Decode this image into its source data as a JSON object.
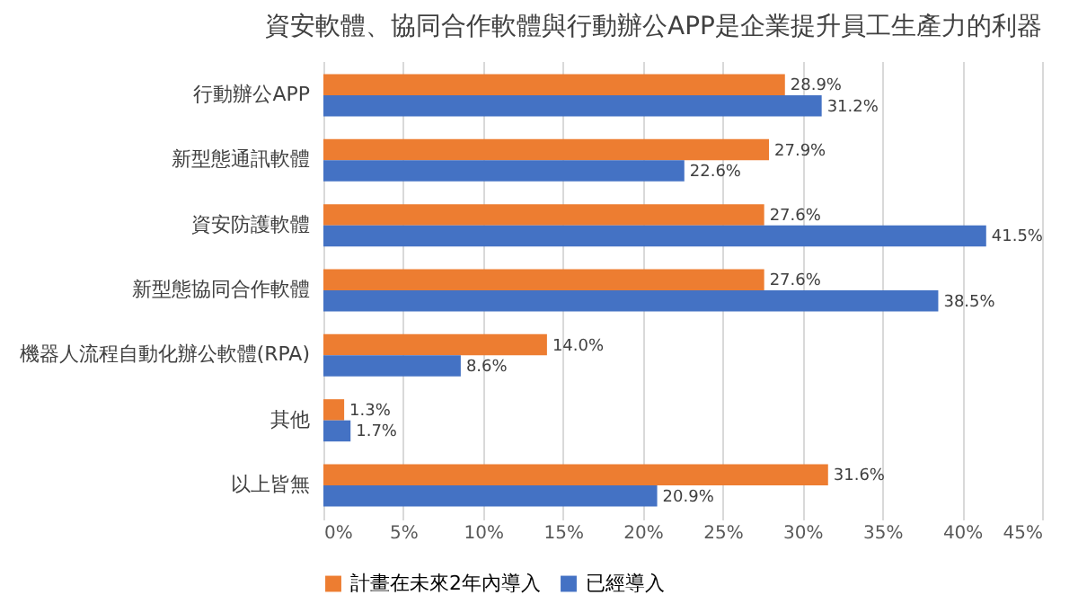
{
  "chart_data": {
    "type": "bar",
    "orientation": "horizontal",
    "title": "資安軟體、協同合作軟體與行動辦公APP是企業提升員工生產力的利器",
    "categories": [
      "行動辦公APP",
      "新型態通訊軟體",
      "資安防護軟體",
      "新型態協同合作軟體",
      "機器人流程自動化辦公軟體(RPA)",
      "其他",
      "以上皆無"
    ],
    "series": [
      {
        "name": "計畫在未來2年內導入",
        "color": "#ed7d31",
        "values": [
          28.9,
          27.9,
          27.6,
          27.6,
          14.0,
          1.3,
          31.6
        ],
        "value_labels": [
          "28.9%",
          "27.9%",
          "27.6%",
          "27.6%",
          "14.0%",
          "1.3%",
          "31.6%"
        ]
      },
      {
        "name": "已經導入",
        "color": "#4472c4",
        "values": [
          31.2,
          22.6,
          41.5,
          38.5,
          8.6,
          1.7,
          20.9
        ],
        "value_labels": [
          "31.2%",
          "22.6%",
          "41.5%",
          "38.5%",
          "8.6%",
          "1.7%",
          "20.9%"
        ]
      }
    ],
    "xlim": [
      0,
      45
    ],
    "xticks": [
      {
        "value": 0,
        "label": "0%"
      },
      {
        "value": 5,
        "label": "5%"
      },
      {
        "value": 10,
        "label": "10%"
      },
      {
        "value": 15,
        "label": "15%"
      },
      {
        "value": 20,
        "label": "20%"
      },
      {
        "value": 25,
        "label": "25%"
      },
      {
        "value": 30,
        "label": "30%"
      },
      {
        "value": 35,
        "label": "35%"
      },
      {
        "value": 40,
        "label": "40%"
      },
      {
        "value": 45,
        "label": "45%"
      }
    ],
    "grid": "x",
    "legend": "bottom"
  }
}
